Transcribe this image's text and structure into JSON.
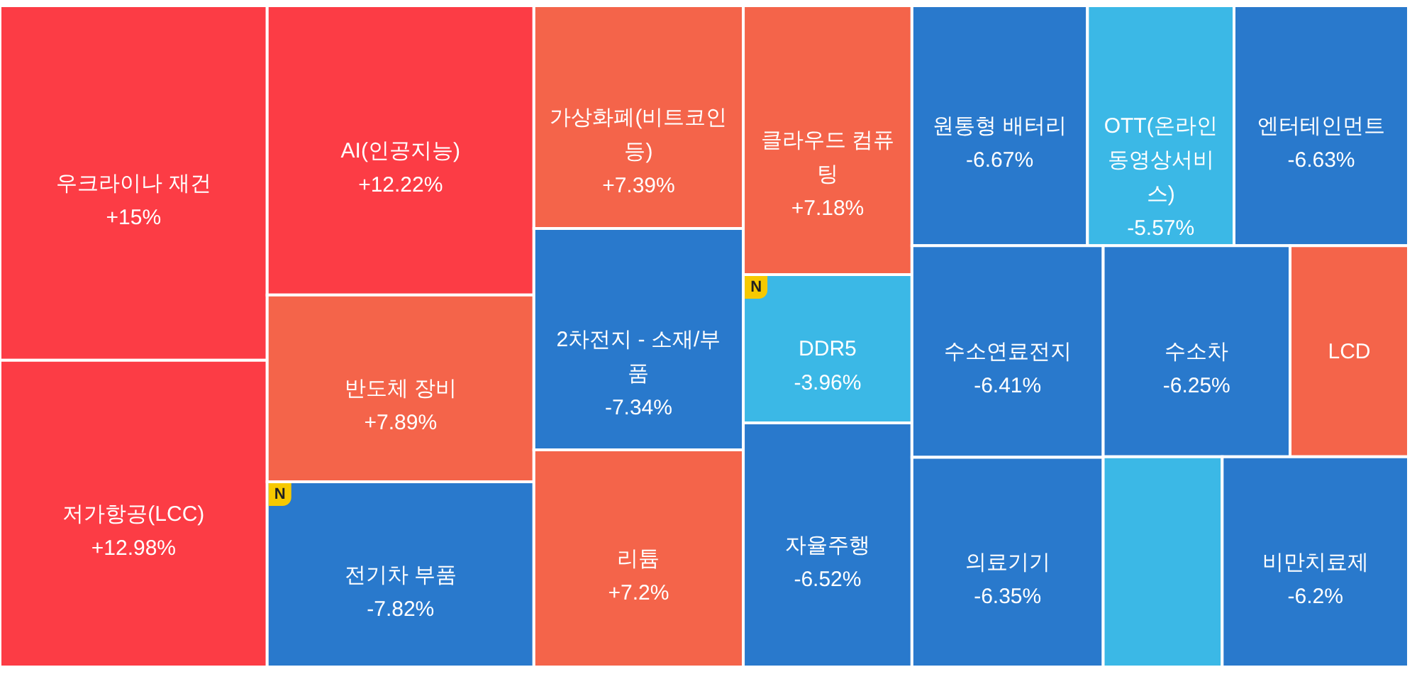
{
  "chart_data": {
    "type": "other",
    "categories": [
      "우크라이나 재건",
      "저가항공(LCC)",
      "AI(인공지능)",
      "반도체 장비",
      "전기차 부품",
      "가상화폐(비트코인 등)",
      "2차전지 - 소재/부품",
      "리튬",
      "클라우드 컴퓨팅",
      "DDR5",
      "자율주행",
      "원통형 배터리",
      "OTT(온라인동영상서비스)",
      "엔터테인먼트",
      "수소연료전지",
      "의료기기",
      "수소차",
      "LCD",
      null,
      "비만치료제"
    ],
    "values": [
      15,
      12.98,
      12.22,
      7.89,
      -7.82,
      7.39,
      -7.34,
      7.2,
      7.18,
      -3.96,
      -6.52,
      -6.67,
      -5.57,
      -6.63,
      -6.41,
      -6.35,
      -6.25,
      null,
      null,
      -6.2
    ],
    "value_labels": [
      "+15%",
      "+12.98%",
      "+12.22%",
      "+7.89%",
      "-7.82%",
      "+7.39%",
      "-7.34%",
      "+7.2%",
      "+7.18%",
      "-3.96%",
      "-6.52%",
      "-6.67%",
      "-5.57%",
      "-6.63%",
      "-6.41%",
      "-6.35%",
      "-6.25%",
      null,
      null,
      "-6.2%"
    ],
    "colors": [
      "#fc3c45",
      "#fc3c45",
      "#fc3c45",
      "#f4644a",
      "#2979cc",
      "#f4644a",
      "#2979cc",
      "#f4644a",
      "#f4644a",
      "#3bb8e6",
      "#2979cc",
      "#2979cc",
      "#3bb8e6",
      "#2979cc",
      "#2979cc",
      "#2979cc",
      "#2979cc",
      "#f4644a",
      "#3bb8e6",
      "#2979cc"
    ],
    "annotations": [
      {
        "text": "N",
        "x": "전기차 부품"
      },
      {
        "text": "N",
        "x": "DDR5"
      }
    ]
  }
}
